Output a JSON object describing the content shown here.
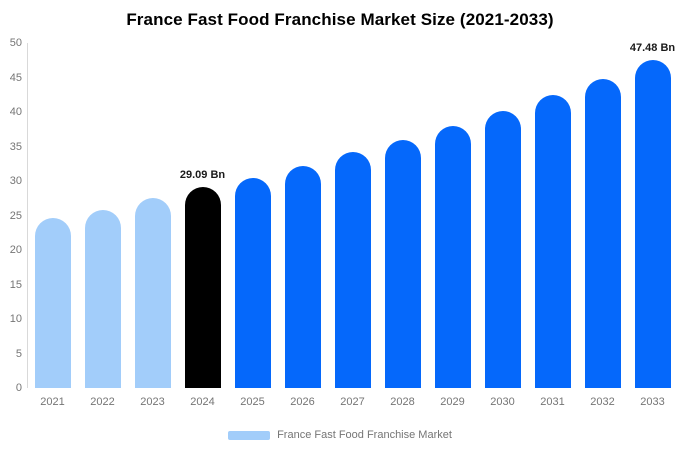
{
  "title": "France Fast Food Franchise Market Size (2021-2033)",
  "legend": {
    "label": "France Fast Food Franchise Market",
    "swatch_color": "#a2cdfa"
  },
  "palette": {
    "historical": "#a2cdfa",
    "highlight": "#000000",
    "forecast": "#0568fb",
    "axis_text": "#757575",
    "axis_line": "#d9d9d9",
    "annotation_text": "#1a1a1a",
    "title_text": "#000000"
  },
  "chart_data": {
    "type": "bar",
    "title": "France Fast Food Franchise Market Size (2021-2033)",
    "categories": [
      "2021",
      "2022",
      "2023",
      "2024",
      "2025",
      "2026",
      "2027",
      "2028",
      "2029",
      "2030",
      "2031",
      "2032",
      "2033"
    ],
    "values": [
      24.6,
      25.8,
      27.5,
      29.09,
      30.4,
      32.2,
      34.2,
      35.9,
      38.0,
      40.1,
      42.5,
      44.8,
      47.48
    ],
    "unit": "Bn",
    "xlabel": "",
    "ylabel": "",
    "ylim": [
      0,
      50
    ],
    "yticks": [
      0,
      5,
      10,
      15,
      20,
      25,
      30,
      35,
      40,
      45,
      50
    ],
    "grid": false,
    "legend_position": "bottom",
    "bar_color_roles": [
      "historical",
      "historical",
      "historical",
      "highlight",
      "forecast",
      "forecast",
      "forecast",
      "forecast",
      "forecast",
      "forecast",
      "forecast",
      "forecast",
      "forecast"
    ],
    "data_labels": [
      "",
      "",
      "",
      "29.09 Bn",
      "",
      "",
      "",
      "",
      "",
      "",
      "",
      "",
      "47.48 Bn"
    ]
  }
}
